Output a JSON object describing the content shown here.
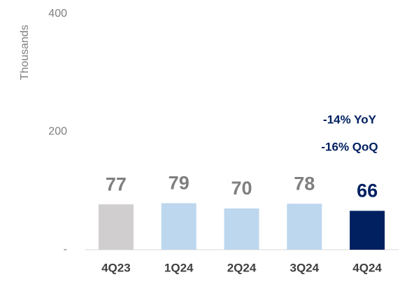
{
  "chart_data": {
    "type": "bar",
    "y_axis_label": "Thousands",
    "categories": [
      "4Q23",
      "1Q24",
      "2Q24",
      "3Q24",
      "4Q24"
    ],
    "values": [
      77,
      79,
      70,
      78,
      66
    ],
    "colors": [
      "#d0cece",
      "#bdd7ee",
      "#bdd7ee",
      "#bdd7ee",
      "#002060"
    ],
    "label_colors": [
      "#7f7f7f",
      "#7f7f7f",
      "#7f7f7f",
      "#7f7f7f",
      "#002060"
    ],
    "ylim": [
      0,
      400
    ],
    "yticks": [
      {
        "value": 0,
        "label": "-"
      },
      200,
      400
    ],
    "grid": false,
    "annotations": [
      "-14%  YoY",
      "-16% QoQ"
    ]
  }
}
